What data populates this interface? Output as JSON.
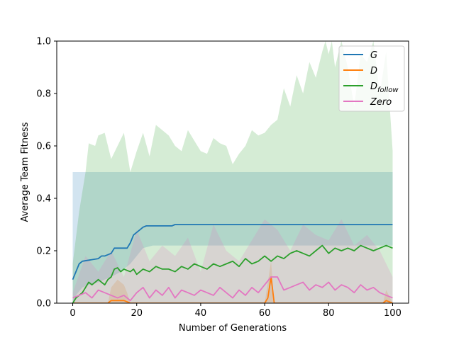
{
  "chart_data": {
    "type": "line",
    "title": "",
    "xlabel": "Number of Generations",
    "ylabel": "Average Team Fitness",
    "xlim": [
      -5,
      105
    ],
    "ylim": [
      0,
      1.0
    ],
    "xticks": [
      0,
      20,
      40,
      60,
      80,
      100
    ],
    "xtick_labels": [
      "0",
      "20",
      "40",
      "60",
      "80",
      "100"
    ],
    "yticks": [
      0.0,
      0.2,
      0.4,
      0.6,
      0.8,
      1.0
    ],
    "ytick_labels": [
      "0.0",
      "0.2",
      "0.4",
      "0.6",
      "0.8",
      "1.0"
    ],
    "grid": false,
    "legend_position": "top-right",
    "series": [
      {
        "name": "G",
        "color": "#1f77b4",
        "x": [
          0,
          2,
          3,
          8,
          9,
          10,
          12,
          13,
          17,
          18,
          19,
          20,
          21,
          22,
          23,
          30,
          31,
          32,
          100
        ],
        "mean": [
          0.09,
          0.15,
          0.16,
          0.17,
          0.18,
          0.18,
          0.19,
          0.21,
          0.21,
          0.23,
          0.26,
          0.27,
          0.28,
          0.29,
          0.295,
          0.295,
          0.295,
          0.3,
          0.3
        ],
        "band_x": [
          0,
          0.01,
          1,
          3,
          5,
          8,
          12,
          15,
          18,
          20,
          22,
          25,
          100,
          100
        ],
        "band_low": [
          0.0,
          0.0,
          0.03,
          0.06,
          0.07,
          0.08,
          0.1,
          0.12,
          0.15,
          0.18,
          0.21,
          0.22,
          0.22,
          0.22
        ],
        "band_high": [
          0.5,
          0.5,
          0.5,
          0.5,
          0.5,
          0.5,
          0.5,
          0.5,
          0.5,
          0.5,
          0.5,
          0.5,
          0.5,
          0.38
        ]
      },
      {
        "name": "D",
        "color": "#ff7f0e",
        "x": [
          0,
          11,
          12,
          14,
          16,
          17,
          18,
          60,
          61,
          62,
          63,
          97,
          98,
          100
        ],
        "mean": [
          0.0,
          0.0,
          0.01,
          0.01,
          0.01,
          0.005,
          0.0,
          0.0,
          0.02,
          0.1,
          0.0,
          0.0,
          0.01,
          0.0
        ],
        "band_x": [
          0,
          11,
          12,
          14,
          16,
          17,
          18,
          60,
          61,
          62,
          63,
          97,
          98,
          100
        ],
        "band_low": [
          0,
          0,
          0,
          0,
          0,
          0,
          0,
          0,
          0,
          0,
          0,
          0,
          0,
          0
        ],
        "band_high": [
          0.0,
          0.0,
          0.06,
          0.09,
          0.07,
          0.04,
          0.0,
          0.0,
          0.08,
          0.16,
          0.0,
          0.0,
          0.05,
          0.0
        ]
      },
      {
        "name": "D_follow",
        "legend_main": "D",
        "legend_sub": "follow",
        "color": "#2ca02c",
        "x": [
          0,
          1,
          2,
          3,
          4,
          5,
          6,
          7,
          8,
          9,
          10,
          11,
          12,
          13,
          14,
          15,
          16,
          17,
          18,
          19,
          20,
          22,
          24,
          26,
          28,
          30,
          32,
          34,
          36,
          38,
          40,
          42,
          44,
          46,
          48,
          50,
          52,
          54,
          56,
          58,
          60,
          62,
          64,
          66,
          68,
          70,
          72,
          74,
          76,
          78,
          80,
          82,
          84,
          86,
          88,
          90,
          92,
          94,
          96,
          98,
          100
        ],
        "mean": [
          0.0,
          0.02,
          0.03,
          0.04,
          0.06,
          0.08,
          0.07,
          0.08,
          0.09,
          0.08,
          0.07,
          0.09,
          0.1,
          0.13,
          0.135,
          0.12,
          0.13,
          0.125,
          0.12,
          0.13,
          0.11,
          0.13,
          0.12,
          0.14,
          0.13,
          0.13,
          0.12,
          0.14,
          0.13,
          0.15,
          0.14,
          0.13,
          0.15,
          0.14,
          0.15,
          0.16,
          0.14,
          0.17,
          0.15,
          0.16,
          0.18,
          0.16,
          0.18,
          0.17,
          0.19,
          0.2,
          0.19,
          0.18,
          0.2,
          0.22,
          0.19,
          0.21,
          0.2,
          0.21,
          0.2,
          0.22,
          0.21,
          0.2,
          0.21,
          0.22,
          0.21
        ],
        "band_x": [
          0,
          2,
          4,
          5,
          7,
          8,
          10,
          12,
          14,
          16,
          18,
          20,
          22,
          24,
          26,
          28,
          30,
          32,
          34,
          36,
          38,
          40,
          42,
          44,
          46,
          48,
          50,
          52,
          54,
          56,
          58,
          60,
          62,
          64,
          66,
          68,
          70,
          72,
          74,
          76,
          78,
          79,
          80,
          81,
          82,
          84,
          86,
          88,
          90,
          92,
          94,
          96,
          98,
          100
        ],
        "band_low": [
          0,
          0,
          0,
          0,
          0,
          0,
          0,
          0,
          0,
          0,
          0,
          0,
          0,
          0,
          0,
          0,
          0,
          0,
          0,
          0,
          0,
          0,
          0,
          0,
          0,
          0,
          0,
          0,
          0,
          0,
          0,
          0,
          0,
          0,
          0,
          0,
          0,
          0,
          0,
          0,
          0,
          0,
          0,
          0,
          0,
          0,
          0,
          0,
          0,
          0,
          0,
          0,
          0,
          0
        ],
        "band_high": [
          0.15,
          0.35,
          0.5,
          0.61,
          0.6,
          0.64,
          0.65,
          0.55,
          0.6,
          0.65,
          0.5,
          0.58,
          0.65,
          0.56,
          0.68,
          0.66,
          0.64,
          0.6,
          0.58,
          0.66,
          0.62,
          0.58,
          0.57,
          0.63,
          0.61,
          0.6,
          0.53,
          0.57,
          0.6,
          0.66,
          0.64,
          0.65,
          0.68,
          0.7,
          0.82,
          0.75,
          0.87,
          0.8,
          0.92,
          0.86,
          0.96,
          1.0,
          0.95,
          1.0,
          0.9,
          1.0,
          0.9,
          0.75,
          0.95,
          0.92,
          1.0,
          0.8,
          0.96,
          0.58
        ]
      },
      {
        "name": "Zero",
        "color": "#e377c2",
        "x": [
          0,
          2,
          4,
          6,
          8,
          10,
          12,
          14,
          16,
          18,
          20,
          22,
          24,
          26,
          28,
          30,
          32,
          34,
          36,
          38,
          40,
          42,
          44,
          46,
          48,
          50,
          52,
          54,
          56,
          58,
          60,
          62,
          64,
          66,
          68,
          70,
          72,
          74,
          76,
          78,
          80,
          82,
          84,
          86,
          88,
          90,
          92,
          94,
          96,
          98,
          100
        ],
        "mean": [
          0.02,
          0.03,
          0.04,
          0.02,
          0.05,
          0.04,
          0.03,
          0.02,
          0.03,
          0.01,
          0.04,
          0.06,
          0.02,
          0.05,
          0.03,
          0.06,
          0.02,
          0.05,
          0.04,
          0.03,
          0.05,
          0.04,
          0.03,
          0.06,
          0.04,
          0.02,
          0.05,
          0.03,
          0.06,
          0.04,
          0.07,
          0.1,
          0.1,
          0.05,
          0.06,
          0.07,
          0.08,
          0.05,
          0.07,
          0.06,
          0.08,
          0.05,
          0.07,
          0.06,
          0.04,
          0.07,
          0.05,
          0.06,
          0.04,
          0.03,
          0.02
        ],
        "band_x": [
          0,
          4,
          8,
          12,
          16,
          20,
          24,
          28,
          32,
          36,
          40,
          44,
          48,
          52,
          56,
          60,
          64,
          68,
          72,
          76,
          80,
          84,
          88,
          92,
          96,
          100
        ],
        "band_low": [
          0,
          0,
          0,
          0,
          0,
          0,
          0,
          0,
          0,
          0,
          0,
          0,
          0,
          0,
          0,
          0,
          0,
          0,
          0,
          0,
          0,
          0,
          0,
          0,
          0,
          0
        ],
        "band_high": [
          0.04,
          0.18,
          0.12,
          0.2,
          0.1,
          0.28,
          0.16,
          0.22,
          0.18,
          0.25,
          0.12,
          0.3,
          0.2,
          0.16,
          0.24,
          0.32,
          0.28,
          0.2,
          0.3,
          0.26,
          0.24,
          0.32,
          0.22,
          0.26,
          0.2,
          0.1
        ]
      }
    ]
  }
}
